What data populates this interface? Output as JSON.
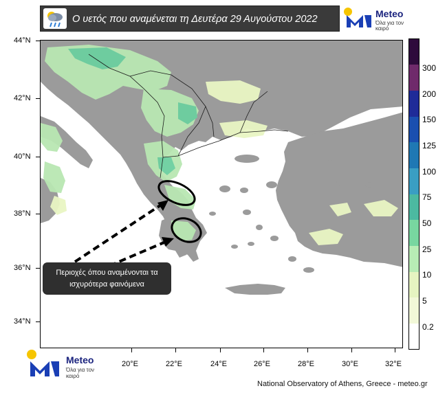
{
  "header": {
    "title": "Ο υετός που αναμένεται τη Δευτέρα 29 Αυγούστου 2022",
    "icon": "rain-cloud-icon"
  },
  "brand": {
    "name": "Meteo",
    "tagline": "Όλα για τον καιρό",
    "accent_blue": "#1a3fb5",
    "sun_yellow": "#f6c500"
  },
  "map": {
    "lat_labels": [
      "44°N",
      "42°N",
      "40°N",
      "38°N",
      "36°N",
      "34°N"
    ],
    "lon_labels": [
      "20°E",
      "22°E",
      "24°E",
      "26°E",
      "28°E",
      "30°E",
      "32°E"
    ],
    "land_color": "#9b9b9b",
    "sea_color": "#ffffff",
    "rain_light_color": "#e9f6c4",
    "rain_mid_color": "#b9e7b3",
    "rain_heavy_color": "#6ccfa0"
  },
  "colorbar": {
    "labels": [
      "300",
      "200",
      "150",
      "125",
      "100",
      "75",
      "50",
      "25",
      "10",
      "5",
      "0.2"
    ],
    "colors": [
      "#2e0b3c",
      "#6f2a6b",
      "#1f2b98",
      "#1a4fb0",
      "#1f78b4",
      "#3a9ec3",
      "#4cb9a1",
      "#78d6a0",
      "#b8ecb5",
      "#e6f4c1",
      "#ffffff"
    ]
  },
  "callout": {
    "line1": "Περιοχές όπου αναμένονται τα",
    "line2": "ισχυρότερα φαινόμενα"
  },
  "credit": "National Observatory of Athens, Greece - meteo.gr"
}
